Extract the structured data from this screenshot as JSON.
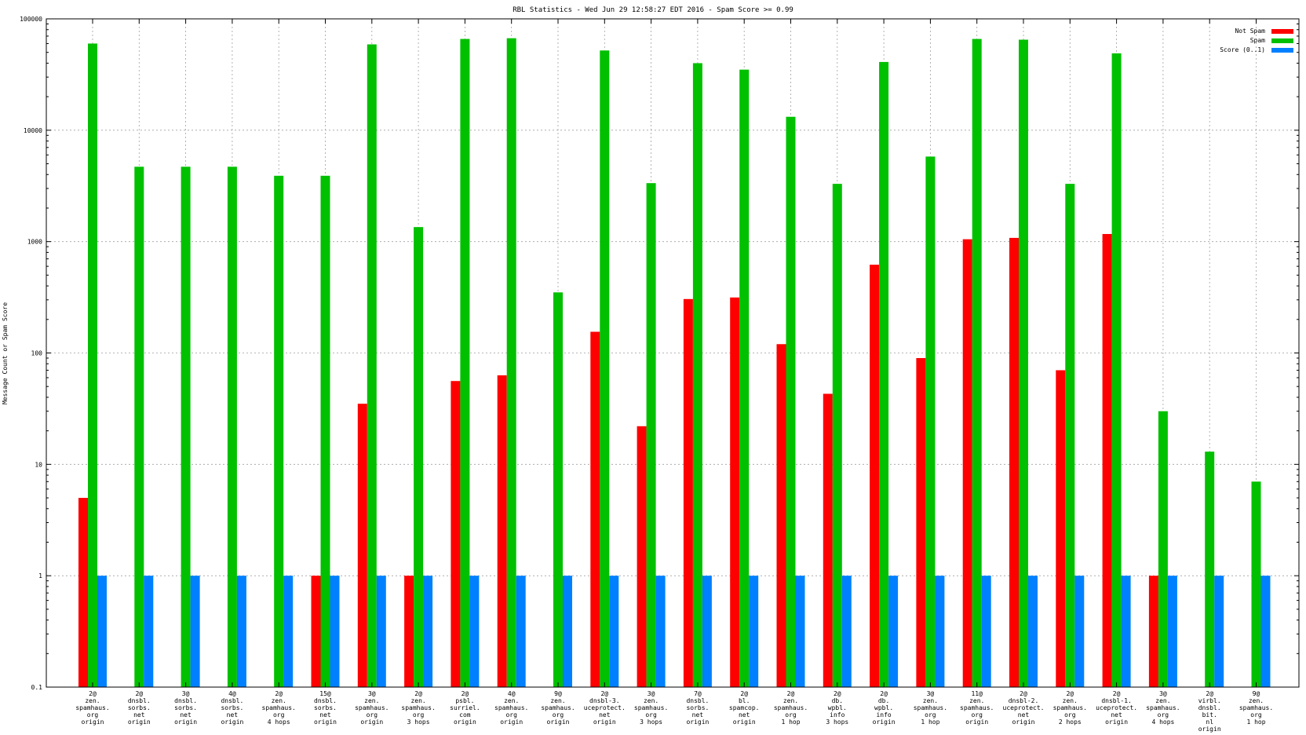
{
  "chart_data": {
    "type": "bar",
    "title": "RBL Statistics - Wed Jun 29 12:58:27 EDT 2016 - Spam Score >= 0.99",
    "ylabel": "Message Count or Spam Score",
    "xlabel": "",
    "yscale": "log",
    "ylim": [
      0.1,
      100000
    ],
    "yticks": [
      "0.1",
      "1",
      "10",
      "100",
      "1000",
      "10000",
      "100000"
    ],
    "grid": true,
    "legend_position": "top-right",
    "categories": [
      [
        "2@",
        "zen.",
        "spamhaus.",
        "org",
        "origin"
      ],
      [
        "2@",
        "dnsbl.",
        "sorbs.",
        "net",
        "origin"
      ],
      [
        "3@",
        "dnsbl.",
        "sorbs.",
        "net",
        "origin"
      ],
      [
        "4@",
        "dnsbl.",
        "sorbs.",
        "net",
        "origin"
      ],
      [
        "2@",
        "zen.",
        "spamhaus.",
        "org",
        "4 hops"
      ],
      [
        "15@",
        "dnsbl.",
        "sorbs.",
        "net",
        "origin"
      ],
      [
        "3@",
        "zen.",
        "spamhaus.",
        "org",
        "origin"
      ],
      [
        "2@",
        "zen.",
        "spamhaus.",
        "org",
        "3 hops"
      ],
      [
        "2@",
        "psbl.",
        "surriel.",
        "com",
        "origin"
      ],
      [
        "4@",
        "zen.",
        "spamhaus.",
        "org",
        "origin"
      ],
      [
        "9@",
        "zen.",
        "spamhaus.",
        "org",
        "origin"
      ],
      [
        "2@",
        "dnsbl-3.",
        "uceprotect.",
        "net",
        "origin"
      ],
      [
        "3@",
        "zen.",
        "spamhaus.",
        "org",
        "3 hops"
      ],
      [
        "7@",
        "dnsbl.",
        "sorbs.",
        "net",
        "origin"
      ],
      [
        "2@",
        "bl.",
        "spamcop.",
        "net",
        "origin"
      ],
      [
        "2@",
        "zen.",
        "spamhaus.",
        "org",
        "1 hop"
      ],
      [
        "2@",
        "db.",
        "wpbl.",
        "info",
        "3 hops"
      ],
      [
        "2@",
        "db.",
        "wpbl.",
        "info",
        "origin"
      ],
      [
        "3@",
        "zen.",
        "spamhaus.",
        "org",
        "1 hop"
      ],
      [
        "11@",
        "zen.",
        "spamhaus.",
        "org",
        "origin"
      ],
      [
        "2@",
        "dnsbl-2.",
        "uceprotect.",
        "net",
        "origin"
      ],
      [
        "2@",
        "zen.",
        "spamhaus.",
        "org",
        "2 hops"
      ],
      [
        "2@",
        "dnsbl-1.",
        "uceprotect.",
        "net",
        "origin"
      ],
      [
        "3@",
        "zen.",
        "spamhaus.",
        "org",
        "4 hops"
      ],
      [
        "2@",
        "virbl.",
        "dnsbl.",
        "bit.",
        "nl",
        "origin"
      ],
      [
        "9@",
        "zen.",
        "spamhaus.",
        "org",
        "1 hop"
      ]
    ],
    "series": [
      {
        "name": "Not Spam",
        "color": "#ff0000",
        "values": [
          5,
          null,
          null,
          null,
          null,
          1,
          35,
          1,
          56,
          63,
          null,
          155,
          22,
          305,
          315,
          120,
          43,
          620,
          90,
          1050,
          1080,
          70,
          1170,
          1,
          null,
          null
        ]
      },
      {
        "name": "Spam",
        "color": "#00c000",
        "values": [
          60000,
          4700,
          4700,
          4700,
          3900,
          3900,
          59000,
          1350,
          66000,
          67000,
          350,
          52000,
          3350,
          40000,
          35000,
          13200,
          3300,
          41000,
          5800,
          66000,
          65000,
          3300,
          49000,
          30,
          13,
          7
        ]
      },
      {
        "name": "Score (0..1)",
        "color": "#0080ff",
        "values": [
          1,
          1,
          1,
          1,
          1,
          1,
          1,
          1,
          1,
          1,
          1,
          1,
          1,
          1,
          1,
          1,
          1,
          1,
          1,
          1,
          1,
          1,
          1,
          1,
          1,
          1
        ]
      }
    ]
  }
}
